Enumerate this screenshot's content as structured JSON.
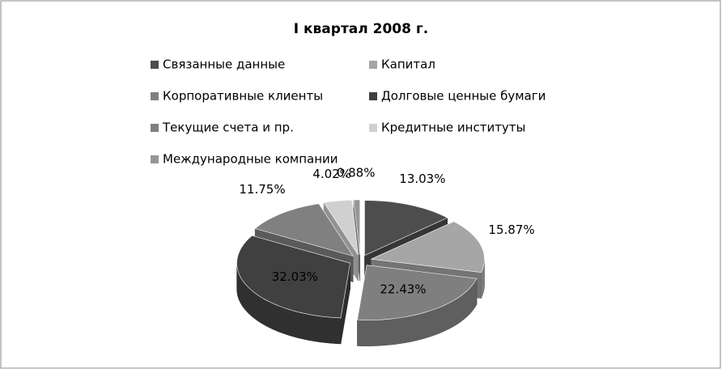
{
  "chart_data": {
    "type": "pie",
    "title": "I квартал  2008 г.",
    "categories": [
      "Связанные данные",
      "Капитал",
      "Корпоративные клиенты",
      "Долговые ценные бумаги",
      "Текущие счета и пр.",
      "Кредитные институты",
      "Международные компании"
    ],
    "values": [
      13.03,
      15.87,
      22.43,
      32.03,
      11.75,
      4.02,
      0.88
    ],
    "value_labels": [
      "13.03%",
      "15.87%",
      "22.43%",
      "32.03%",
      "11.75%",
      "4.02%",
      "0.88%"
    ],
    "colors": [
      "#4d4d4d",
      "#a6a6a6",
      "#7f7f7f",
      "#404040",
      "#808080",
      "#d0d0d0",
      "#969696"
    ]
  }
}
